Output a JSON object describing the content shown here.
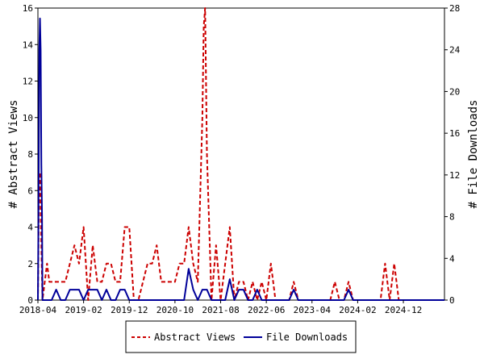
{
  "chart_data": {
    "type": "line",
    "title": "",
    "ylabel_left": "# Abstract Views",
    "ylabel_right": "# File Downloads",
    "xlabel": "",
    "x_tick_labels": [
      "2018-04",
      "2019-02",
      "2019-12",
      "2020-10",
      "2021-08",
      "2022-06",
      "2023-04",
      "2024-02",
      "2024-12"
    ],
    "x_tick_positions_month_index": [
      0,
      10,
      20,
      30,
      40,
      50,
      60,
      70,
      80
    ],
    "xlim_month_index": [
      0,
      89
    ],
    "y_left_ticks": [
      0,
      2,
      4,
      6,
      8,
      10,
      12,
      14,
      16
    ],
    "ylim_left": [
      0,
      16
    ],
    "y_right_ticks": [
      0,
      4,
      8,
      12,
      16,
      20,
      24,
      28
    ],
    "ylim_right": [
      0,
      28
    ],
    "grid": false,
    "legend_position": "bottom-center",
    "series": [
      {
        "name": "Abstract Views",
        "axis": "left",
        "color": "#cc0000",
        "style": "dashed",
        "points": [
          [
            0,
            0
          ],
          [
            0.25,
            6
          ],
          [
            0.5,
            7
          ],
          [
            0.75,
            3
          ],
          [
            1,
            0
          ],
          [
            1.5,
            1
          ],
          [
            2,
            2
          ],
          [
            2.5,
            1
          ],
          [
            3,
            1
          ],
          [
            4,
            1
          ],
          [
            5,
            1
          ],
          [
            6,
            1
          ],
          [
            7,
            2
          ],
          [
            8,
            3
          ],
          [
            9,
            2
          ],
          [
            10,
            4
          ],
          [
            11,
            0
          ],
          [
            12,
            3
          ],
          [
            13,
            1
          ],
          [
            14,
            1
          ],
          [
            15,
            2
          ],
          [
            16,
            2
          ],
          [
            17,
            1
          ],
          [
            18,
            1
          ],
          [
            19,
            4
          ],
          [
            20,
            4
          ],
          [
            21,
            0
          ],
          [
            22,
            0
          ],
          [
            23,
            1
          ],
          [
            24,
            2
          ],
          [
            25,
            2
          ],
          [
            26,
            3
          ],
          [
            27,
            1
          ],
          [
            28,
            1
          ],
          [
            29,
            1
          ],
          [
            30,
            1
          ],
          [
            31,
            2
          ],
          [
            32,
            2
          ],
          [
            33,
            4
          ],
          [
            34,
            2
          ],
          [
            35,
            1
          ],
          [
            36,
            10
          ],
          [
            36.3,
            15
          ],
          [
            36.6,
            16
          ],
          [
            37,
            8
          ],
          [
            38,
            0
          ],
          [
            39,
            3
          ],
          [
            40,
            0
          ],
          [
            41,
            2
          ],
          [
            42,
            4
          ],
          [
            43,
            0
          ],
          [
            44,
            1
          ],
          [
            45,
            1
          ],
          [
            46,
            0
          ],
          [
            47,
            1
          ],
          [
            48,
            0
          ],
          [
            49,
            1
          ],
          [
            50,
            0
          ],
          [
            51,
            2
          ],
          [
            52,
            0
          ],
          [
            53,
            0
          ],
          [
            54,
            0
          ],
          [
            55,
            0
          ],
          [
            56,
            1
          ],
          [
            57,
            0
          ],
          [
            58,
            0
          ],
          [
            59,
            0
          ],
          [
            60,
            0
          ],
          [
            61,
            0
          ],
          [
            62,
            0
          ],
          [
            63,
            0
          ],
          [
            64,
            0
          ],
          [
            65,
            1
          ],
          [
            66,
            0
          ],
          [
            67,
            0
          ],
          [
            68,
            1
          ],
          [
            69,
            0
          ],
          [
            70,
            0
          ],
          [
            71,
            0
          ],
          [
            72,
            0
          ],
          [
            73,
            0
          ],
          [
            74,
            0
          ],
          [
            75,
            0
          ],
          [
            76,
            2
          ],
          [
            77,
            0
          ],
          [
            78,
            2
          ],
          [
            79,
            0
          ],
          [
            80,
            0
          ],
          [
            81,
            0
          ],
          [
            82,
            0
          ],
          [
            83,
            0
          ],
          [
            84,
            0
          ],
          [
            85,
            0
          ],
          [
            86,
            0
          ],
          [
            87,
            0
          ],
          [
            88,
            0
          ],
          [
            89,
            0
          ]
        ]
      },
      {
        "name": "File Downloads",
        "axis": "right",
        "color": "#000099",
        "style": "solid",
        "points": [
          [
            0,
            0
          ],
          [
            0.15,
            10
          ],
          [
            0.3,
            24
          ],
          [
            0.45,
            27
          ],
          [
            0.6,
            24
          ],
          [
            0.75,
            13
          ],
          [
            0.9,
            8
          ],
          [
            1,
            0
          ],
          [
            2,
            0
          ],
          [
            3,
            0
          ],
          [
            4,
            1
          ],
          [
            5,
            0
          ],
          [
            6,
            0
          ],
          [
            7,
            1
          ],
          [
            8,
            1
          ],
          [
            9,
            1
          ],
          [
            10,
            0
          ],
          [
            11,
            1
          ],
          [
            12,
            1
          ],
          [
            13,
            1
          ],
          [
            14,
            0
          ],
          [
            15,
            1
          ],
          [
            16,
            0
          ],
          [
            17,
            0
          ],
          [
            18,
            1
          ],
          [
            19,
            1
          ],
          [
            20,
            0
          ],
          [
            21,
            0
          ],
          [
            22,
            0
          ],
          [
            23,
            0
          ],
          [
            24,
            0
          ],
          [
            25,
            0
          ],
          [
            26,
            0
          ],
          [
            27,
            0
          ],
          [
            28,
            0
          ],
          [
            29,
            0
          ],
          [
            30,
            0
          ],
          [
            31,
            0
          ],
          [
            32,
            0
          ],
          [
            33,
            3
          ],
          [
            34,
            1
          ],
          [
            35,
            0
          ],
          [
            36,
            1
          ],
          [
            37,
            1
          ],
          [
            38,
            0
          ],
          [
            39,
            0
          ],
          [
            40,
            0
          ],
          [
            41,
            0
          ],
          [
            42,
            2
          ],
          [
            43,
            0
          ],
          [
            44,
            1
          ],
          [
            45,
            1
          ],
          [
            46,
            0
          ],
          [
            47,
            0
          ],
          [
            48,
            1
          ],
          [
            49,
            0
          ],
          [
            50,
            0
          ],
          [
            51,
            0
          ],
          [
            52,
            0
          ],
          [
            53,
            0
          ],
          [
            54,
            0
          ],
          [
            55,
            0
          ],
          [
            56,
            1
          ],
          [
            57,
            0
          ],
          [
            58,
            0
          ],
          [
            59,
            0
          ],
          [
            60,
            0
          ],
          [
            61,
            0
          ],
          [
            62,
            0
          ],
          [
            63,
            0
          ],
          [
            64,
            0
          ],
          [
            65,
            0
          ],
          [
            66,
            0
          ],
          [
            67,
            0
          ],
          [
            68,
            1
          ],
          [
            69,
            0
          ],
          [
            70,
            0
          ],
          [
            71,
            0
          ],
          [
            72,
            0
          ],
          [
            73,
            0
          ],
          [
            74,
            0
          ],
          [
            75,
            0
          ],
          [
            76,
            0
          ],
          [
            77,
            0
          ],
          [
            78,
            0
          ],
          [
            79,
            0
          ],
          [
            80,
            0
          ],
          [
            81,
            0
          ],
          [
            82,
            0
          ],
          [
            83,
            0
          ],
          [
            84,
            0
          ],
          [
            85,
            0
          ],
          [
            86,
            0
          ],
          [
            87,
            0
          ],
          [
            88,
            0
          ],
          [
            89,
            0
          ]
        ]
      }
    ]
  }
}
